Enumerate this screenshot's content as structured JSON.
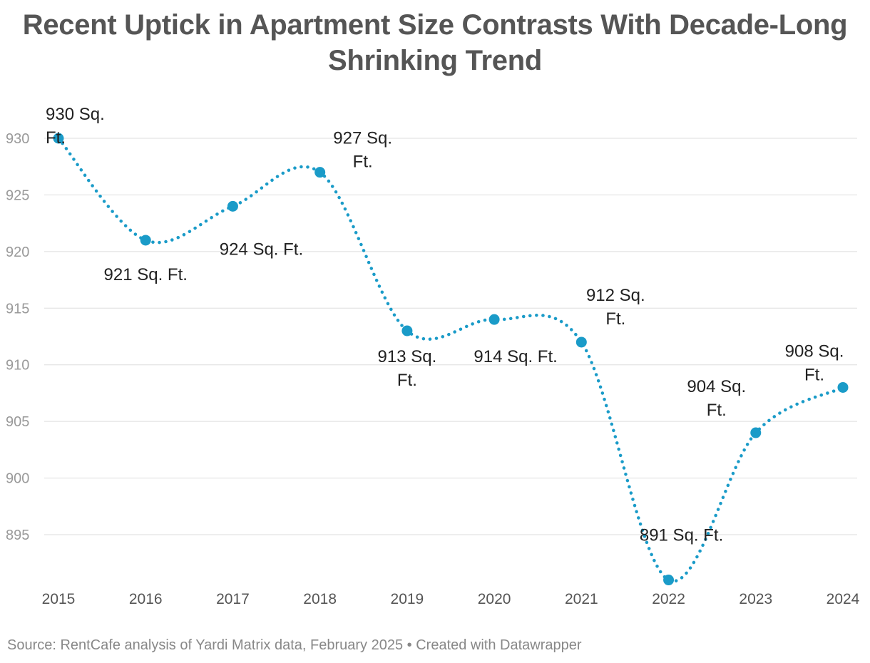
{
  "chart_data": {
    "type": "line",
    "title": "Recent Uptick in Apartment Size Contrasts With Decade-Long Shrinking Trend",
    "x": [
      "2015",
      "2016",
      "2017",
      "2018",
      "2019",
      "2020",
      "2021",
      "2022",
      "2023",
      "2024"
    ],
    "values": [
      930,
      921,
      924,
      927,
      913,
      914,
      912,
      891,
      904,
      908
    ],
    "data_labels": [
      "930 Sq. Ft.",
      "921 Sq. Ft.",
      "924 Sq. Ft.",
      "927 Sq. Ft.",
      "913 Sq. Ft.",
      "914 Sq. Ft.",
      "912 Sq. Ft.",
      "891 Sq. Ft.",
      "904 Sq. Ft.",
      "908 Sq. Ft."
    ],
    "y_ticks": [
      895,
      900,
      905,
      910,
      915,
      920,
      925,
      930
    ],
    "ylim": [
      890,
      933
    ],
    "grid": true,
    "line_style": "dotted",
    "color": "#1a9bc8"
  },
  "footer": "Source: RentCafe analysis of Yardi Matrix data, February 2025 • Created with Datawrapper"
}
